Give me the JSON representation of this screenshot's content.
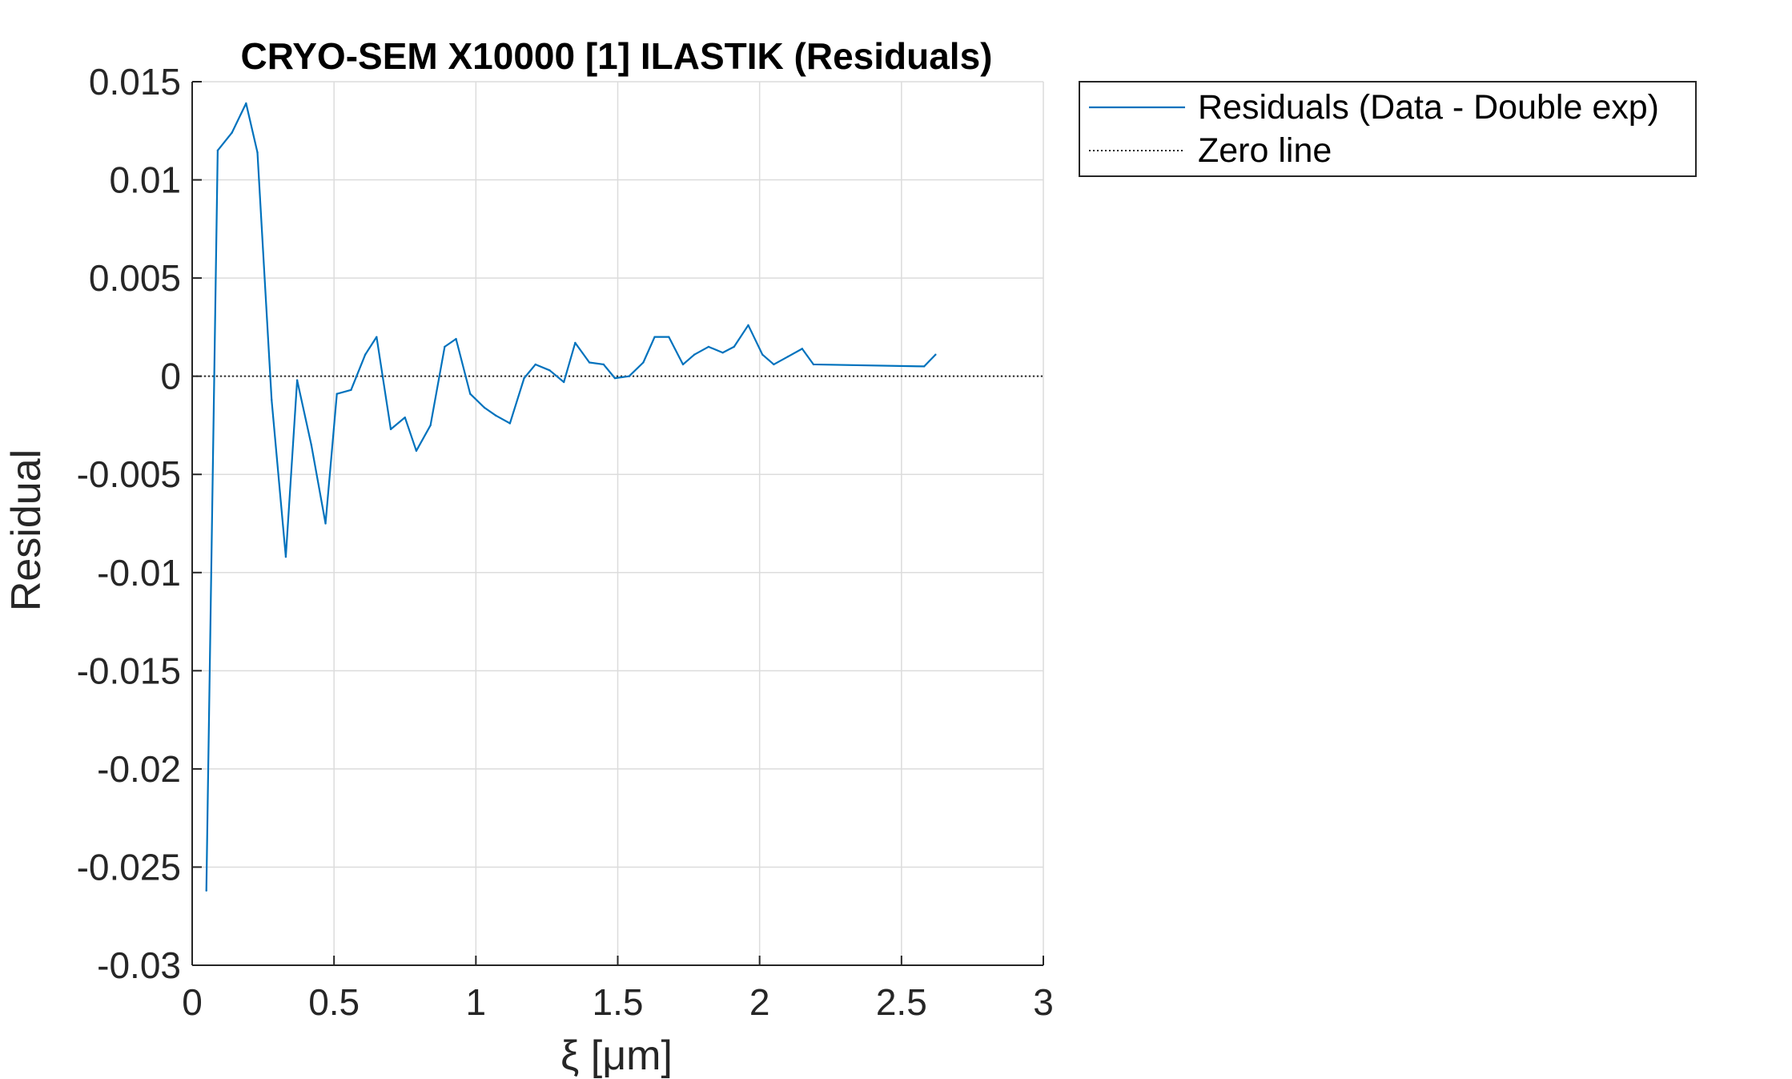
{
  "colors": {
    "residual_line": "#0072BD",
    "zero_line": "#262626",
    "grid": "#dcdcdc",
    "axes": "#262626"
  },
  "chart_data": {
    "type": "line",
    "title": "CRYO-SEM X10000 [1] ILASTIK (Residuals)",
    "xlabel": "ξ  [μm]",
    "ylabel": "Residual",
    "xlim": [
      0,
      3
    ],
    "ylim": [
      -0.03,
      0.015
    ],
    "grid": true,
    "legend_position": "outside-top-right",
    "x_ticks": [
      0,
      0.5,
      1,
      1.5,
      2,
      2.5,
      3
    ],
    "x_tick_labels": [
      "0",
      "0.5",
      "1",
      "1.5",
      "2",
      "2.5",
      "3"
    ],
    "y_ticks": [
      0.015,
      0.01,
      0.005,
      0,
      -0.005,
      -0.01,
      -0.015,
      -0.02,
      -0.025,
      -0.03
    ],
    "y_tick_labels": [
      "0.015",
      "0.01",
      "0.005",
      "0",
      "-0.005",
      "-0.01",
      "-0.015",
      "-0.02",
      "-0.025",
      "-0.03"
    ],
    "series": [
      {
        "name": "Residuals (Data - Double exp)",
        "style": "solid",
        "x": [
          0.05,
          0.09,
          0.14,
          0.19,
          0.23,
          0.28,
          0.33,
          0.37,
          0.42,
          0.47,
          0.51,
          0.56,
          0.61,
          0.65,
          0.7,
          0.75,
          0.79,
          0.84,
          0.89,
          0.93,
          0.98,
          1.03,
          1.07,
          1.12,
          1.17,
          1.21,
          1.26,
          1.31,
          1.35,
          1.4,
          1.45,
          1.49,
          1.54,
          1.59,
          1.63,
          1.68,
          1.73,
          1.77,
          1.82,
          1.87,
          1.91,
          1.96,
          2.01,
          2.05,
          2.1,
          2.15,
          2.19,
          2.58,
          2.62
        ],
        "y": [
          -0.0262,
          0.0115,
          0.0124,
          0.0139,
          0.0114,
          -0.0012,
          -0.0092,
          -0.0002,
          -0.0035,
          -0.0075,
          -0.0009,
          -0.0007,
          0.0011,
          0.002,
          -0.0027,
          -0.0021,
          -0.0038,
          -0.0025,
          0.0015,
          0.0019,
          -0.0009,
          -0.0016,
          -0.002,
          -0.0024,
          -0.0001,
          0.0006,
          0.0003,
          -0.0003,
          0.0017,
          0.0007,
          0.0006,
          -0.0001,
          0.0,
          0.0007,
          0.002,
          0.002,
          0.0006,
          0.0011,
          0.0015,
          0.0012,
          0.0015,
          0.0026,
          0.0011,
          0.0006,
          0.001,
          0.0014,
          0.0006,
          0.0005,
          0.0011
        ]
      },
      {
        "name": "Zero line",
        "style": "dotted",
        "x": [
          0,
          3
        ],
        "y": [
          0,
          0
        ]
      }
    ]
  }
}
